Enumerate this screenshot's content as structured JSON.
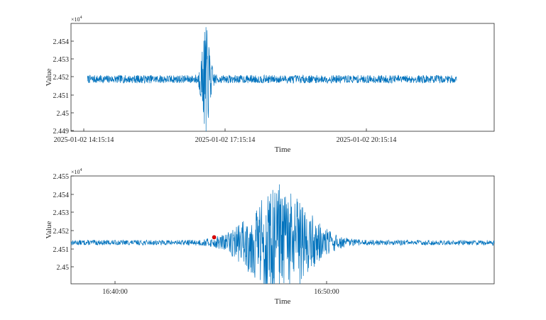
{
  "colors": {
    "series": "#0072bd",
    "marker": "#e00000",
    "axes": "#262626",
    "background": "#ffffff"
  },
  "chart_data": [
    {
      "type": "line",
      "title": "",
      "xlabel": "Time",
      "ylabel": "Value",
      "y_exponent_label": "×10",
      "y_exponent_power": "4",
      "x_unit": "hours",
      "x_ticks": [
        {
          "x": 0,
          "label": "2025-01-02 14:15:14"
        },
        {
          "x": 3,
          "label": "2025-01-02 17:15:14"
        },
        {
          "x": 6,
          "label": "2025-01-02 20:15:14"
        }
      ],
      "xlim": [
        -0.35,
        8.65
      ],
      "x_data_range": [
        0,
        7.85
      ],
      "y_ticks": [
        {
          "y": 2.449,
          "label": "2.449"
        },
        {
          "y": 2.45,
          "label": "2.45"
        },
        {
          "y": 2.451,
          "label": "2.451"
        },
        {
          "y": 2.452,
          "label": "2.452"
        },
        {
          "y": 2.453,
          "label": "2.453"
        },
        {
          "y": 2.454,
          "label": "2.454"
        }
      ],
      "ylim": [
        2.449,
        2.4549
      ],
      "baseline": 2.45185,
      "noise_amplitude": 0.00022,
      "events": [
        {
          "x": 2.52,
          "spike_max": 2.4547,
          "spike_min": 2.449
        }
      ],
      "grid": false,
      "legend": "none"
    },
    {
      "type": "line",
      "title": "",
      "xlabel": "Time",
      "ylabel": "Value",
      "y_exponent_label": "×10",
      "y_exponent_power": "4",
      "x_unit": "minutes after 16:40:00",
      "x_ticks": [
        {
          "x": 0,
          "label": "16:40:00"
        },
        {
          "x": 10,
          "label": "16:50:00"
        }
      ],
      "xlim": [
        -1.6,
        18.5
      ],
      "x_data_range": [
        -1.6,
        18.5
      ],
      "y_ticks": [
        {
          "y": 2.45,
          "label": "2.45"
        },
        {
          "y": 2.451,
          "label": "2.451"
        },
        {
          "y": 2.452,
          "label": "2.452"
        },
        {
          "y": 2.453,
          "label": "2.453"
        },
        {
          "y": 2.454,
          "label": "2.454"
        },
        {
          "y": 2.455,
          "label": "2.455"
        }
      ],
      "ylim": [
        2.4499,
        2.455
      ],
      "baseline": 2.45185,
      "noise_amplitude": 0.00012,
      "events": [
        {
          "x": 8.3,
          "spike_max": 2.4546,
          "spike_min": 2.4499
        }
      ],
      "marker_points": [
        {
          "x": 5.2,
          "y": 2.4521
        }
      ],
      "grid": false,
      "legend": "none"
    }
  ]
}
